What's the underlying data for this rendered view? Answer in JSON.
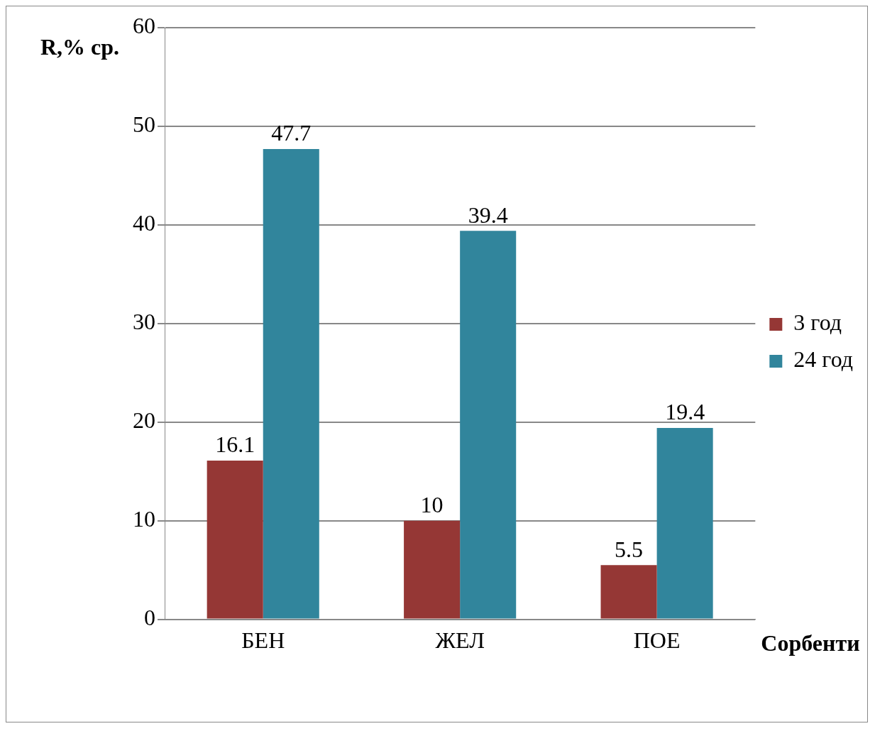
{
  "chart_data": {
    "type": "bar",
    "ylabel": "R,% ср.",
    "xlabel": "Сорбенти",
    "categories": [
      "БЕН",
      "ЖЕЛ",
      "ПОЕ"
    ],
    "series": [
      {
        "name": "3 год",
        "color": "#953735",
        "values": [
          16.1,
          10,
          5.5
        ]
      },
      {
        "name": "24 год",
        "color": "#31859c",
        "values": [
          47.7,
          39.4,
          19.4
        ]
      }
    ],
    "ylim": [
      0,
      60
    ],
    "yticks": [
      0,
      10,
      20,
      30,
      40,
      50,
      60
    ],
    "grid": "y",
    "legend": "right",
    "data_labels": true
  }
}
